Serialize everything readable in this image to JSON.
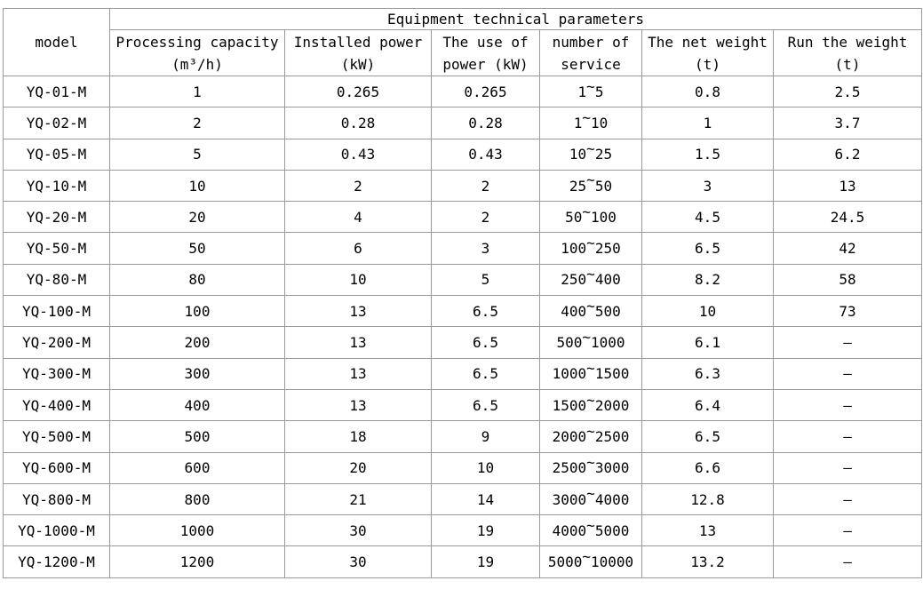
{
  "colors": {
    "border": "#9a9a9a",
    "text": "#000000",
    "background": "#ffffff"
  },
  "chart_data": {
    "type": "table",
    "title": "Equipment technical parameters",
    "model_header": "model",
    "columns": [
      {
        "line1": "Processing capacity",
        "line2": "(m³/h)",
        "full": "Processing capacity (m³/h)"
      },
      {
        "line1": "Installed power",
        "line2": "(kW)",
        "full": "Installed power (kW)"
      },
      {
        "line1": "The use of",
        "line2": "power (kW)",
        "full": "The use of power (kW)"
      },
      {
        "line1": "number of",
        "line2": "service",
        "full": "number of service"
      },
      {
        "line1": "The net weight",
        "line2": "(t)",
        "full": "The net weight (t)"
      },
      {
        "line1": "Run the weight",
        "line2": "(t)",
        "full": "Run the weight (t)"
      }
    ],
    "rows": [
      {
        "model": "YQ-01-M",
        "capacity": "1",
        "installed_power": "0.265",
        "use_of_power": "0.265",
        "service": "1~5",
        "net_weight": "0.8",
        "run_weight": "2.5"
      },
      {
        "model": "YQ-02-M",
        "capacity": "2",
        "installed_power": "0.28",
        "use_of_power": "0.28",
        "service": "1~10",
        "net_weight": "1",
        "run_weight": "3.7"
      },
      {
        "model": "YQ-05-M",
        "capacity": "5",
        "installed_power": "0.43",
        "use_of_power": "0.43",
        "service": "10~25",
        "net_weight": "1.5",
        "run_weight": "6.2"
      },
      {
        "model": "YQ-10-M",
        "capacity": "10",
        "installed_power": "2",
        "use_of_power": "2",
        "service": "25~50",
        "net_weight": "3",
        "run_weight": "13"
      },
      {
        "model": "YQ-20-M",
        "capacity": "20",
        "installed_power": "4",
        "use_of_power": "2",
        "service": "50~100",
        "net_weight": "4.5",
        "run_weight": "24.5"
      },
      {
        "model": "YQ-50-M",
        "capacity": "50",
        "installed_power": "6",
        "use_of_power": "3",
        "service": "100~250",
        "net_weight": "6.5",
        "run_weight": "42"
      },
      {
        "model": "YQ-80-M",
        "capacity": "80",
        "installed_power": "10",
        "use_of_power": "5",
        "service": "250~400",
        "net_weight": "8.2",
        "run_weight": "58"
      },
      {
        "model": "YQ-100-M",
        "capacity": "100",
        "installed_power": "13",
        "use_of_power": "6.5",
        "service": "400~500",
        "net_weight": "10",
        "run_weight": "73"
      },
      {
        "model": "YQ-200-M",
        "capacity": "200",
        "installed_power": "13",
        "use_of_power": "6.5",
        "service": "500~1000",
        "net_weight": "6.1",
        "run_weight": "—"
      },
      {
        "model": "YQ-300-M",
        "capacity": "300",
        "installed_power": "13",
        "use_of_power": "6.5",
        "service": "1000~1500",
        "net_weight": "6.3",
        "run_weight": "—"
      },
      {
        "model": "YQ-400-M",
        "capacity": "400",
        "installed_power": "13",
        "use_of_power": "6.5",
        "service": "1500~2000",
        "net_weight": "6.4",
        "run_weight": "—"
      },
      {
        "model": "YQ-500-M",
        "capacity": "500",
        "installed_power": "18",
        "use_of_power": "9",
        "service": "2000~2500",
        "net_weight": "6.5",
        "run_weight": "—"
      },
      {
        "model": "YQ-600-M",
        "capacity": "600",
        "installed_power": "20",
        "use_of_power": "10",
        "service": "2500~3000",
        "net_weight": "6.6",
        "run_weight": "—"
      },
      {
        "model": "YQ-800-M",
        "capacity": "800",
        "installed_power": "21",
        "use_of_power": "14",
        "service": "3000~4000",
        "net_weight": "12.8",
        "run_weight": "—"
      },
      {
        "model": "YQ-1000-M",
        "capacity": "1000",
        "installed_power": "30",
        "use_of_power": "19",
        "service": "4000~5000",
        "net_weight": "13",
        "run_weight": "—"
      },
      {
        "model": "YQ-1200-M",
        "capacity": "1200",
        "installed_power": "30",
        "use_of_power": "19",
        "service": "5000~10000",
        "net_weight": "13.2",
        "run_weight": "—"
      }
    ]
  }
}
